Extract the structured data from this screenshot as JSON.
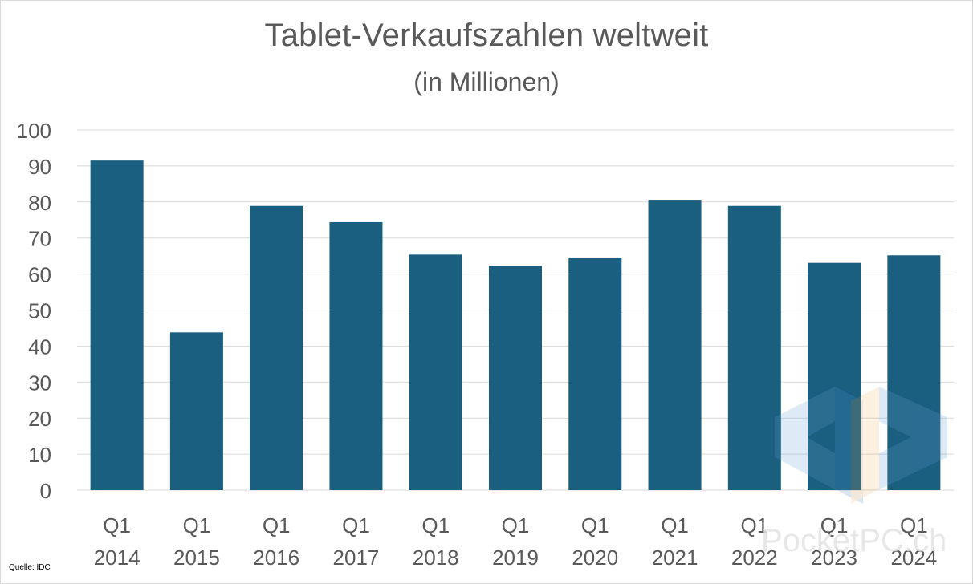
{
  "chart_data": {
    "type": "bar",
    "title": "Tablet-Verkaufszahlen weltweit",
    "subtitle": "(in Millionen)",
    "categories": [
      [
        "Q1",
        "2014"
      ],
      [
        "Q1",
        "2015"
      ],
      [
        "Q1",
        "2016"
      ],
      [
        "Q1",
        "2017"
      ],
      [
        "Q1",
        "2018"
      ],
      [
        "Q1",
        "2019"
      ],
      [
        "Q1",
        "2020"
      ],
      [
        "Q1",
        "2021"
      ],
      [
        "Q1",
        "2022"
      ],
      [
        "Q1",
        "2023"
      ],
      [
        "Q1",
        "2024"
      ]
    ],
    "values": [
      91.5,
      43.8,
      78.9,
      74.4,
      65.4,
      62.3,
      64.6,
      80.6,
      78.9,
      63.1,
      65.2
    ],
    "ylim": [
      0,
      100
    ],
    "yticks": [
      0,
      10,
      20,
      30,
      40,
      50,
      60,
      70,
      80,
      90,
      100
    ],
    "xlabel": "",
    "ylabel": "",
    "grid": true,
    "legend": "none",
    "colors": {
      "bar": "#1a5e80",
      "grid": "#d9d9d9",
      "text": "#595959"
    }
  },
  "footer": {
    "source": "Quelle: IDC",
    "watermark": "PocketPC.ch"
  }
}
